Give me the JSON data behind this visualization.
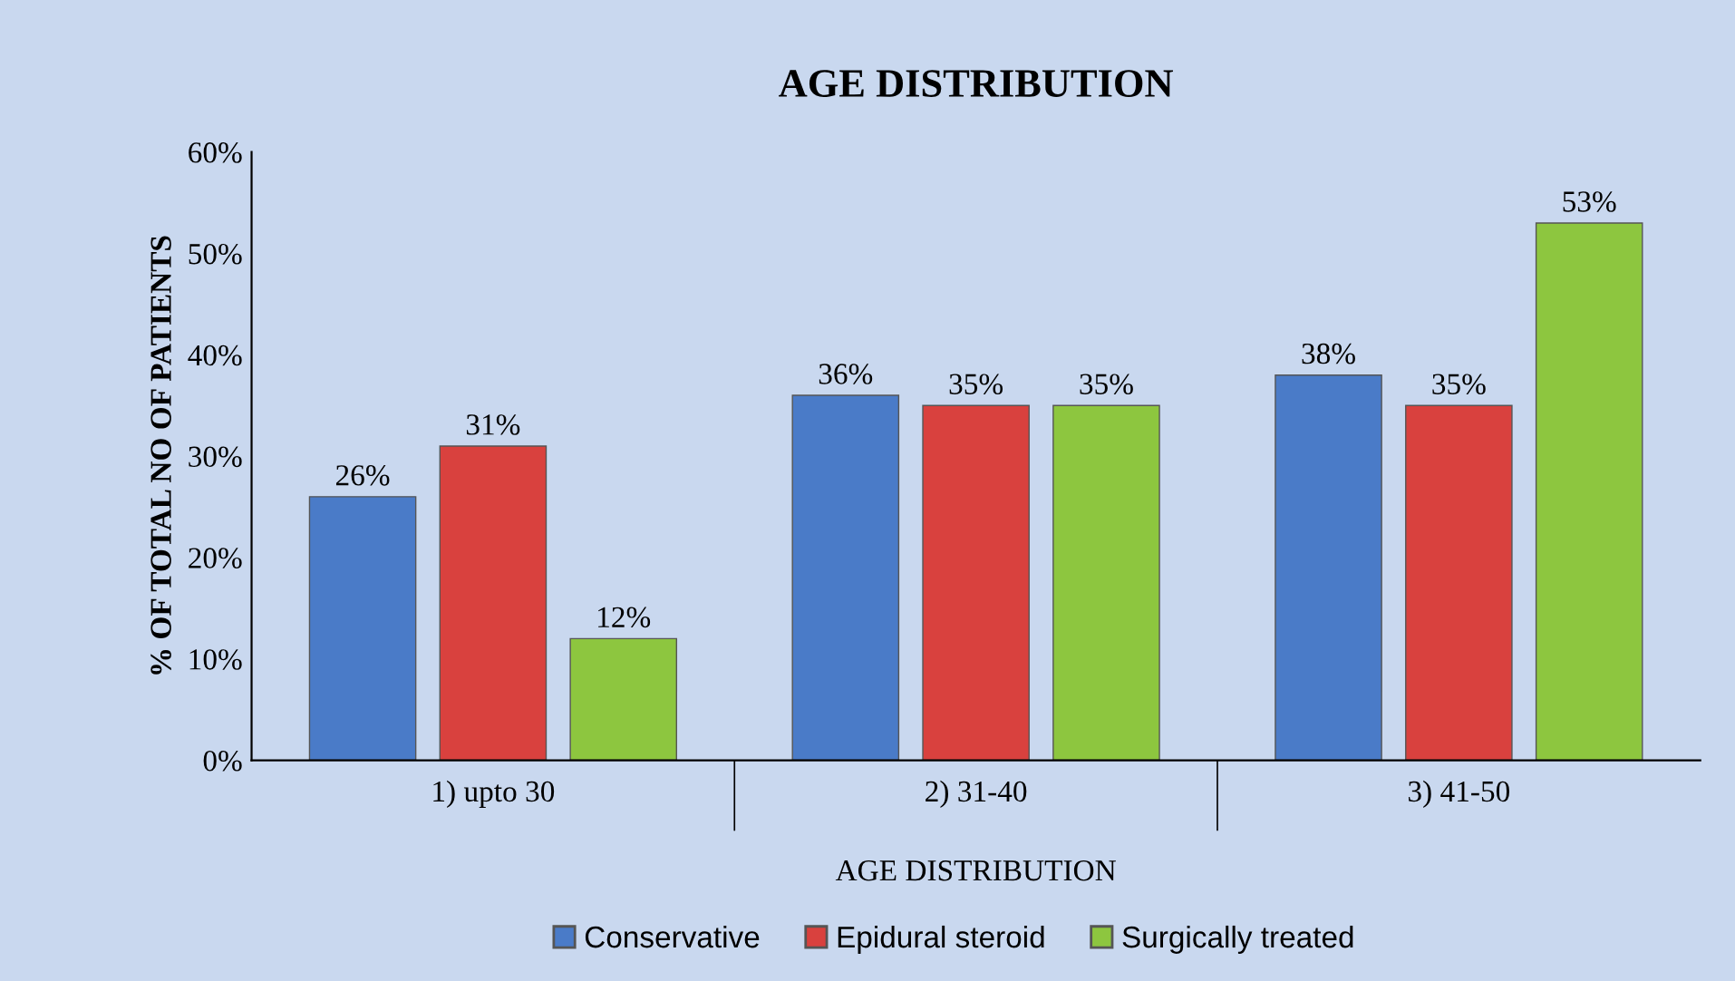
{
  "chart_data": {
    "type": "bar",
    "title": "AGE DISTRIBUTION",
    "xlabel": "AGE DISTRIBUTION",
    "ylabel": "% OF TOTAL NO OF PATIENTS",
    "categories": [
      "1) upto 30",
      "2) 31-40",
      "3) 41-50"
    ],
    "series": [
      {
        "name": "Conservative",
        "color": "#4a7bc8",
        "values": [
          26,
          36,
          38
        ],
        "value_labels": [
          "26%",
          "36%",
          "38%"
        ]
      },
      {
        "name": "Epidural steroid",
        "color": "#d9413e",
        "values": [
          31,
          35,
          35
        ],
        "value_labels": [
          "31%",
          "35%",
          "35%"
        ]
      },
      {
        "name": "Surgically treated",
        "color": "#8dc63f",
        "values": [
          12,
          35,
          53
        ],
        "value_labels": [
          "12%",
          "35%",
          "53%"
        ]
      }
    ],
    "ylim": [
      0,
      60
    ],
    "yticks": [
      {
        "value": 0,
        "label": "0%"
      },
      {
        "value": 10,
        "label": "10%"
      },
      {
        "value": 20,
        "label": "20%"
      },
      {
        "value": 30,
        "label": "30%"
      },
      {
        "value": 40,
        "label": "40%"
      },
      {
        "value": 50,
        "label": "50%"
      },
      {
        "value": 60,
        "label": "60%"
      }
    ],
    "grid": false,
    "legend": "bottom"
  }
}
